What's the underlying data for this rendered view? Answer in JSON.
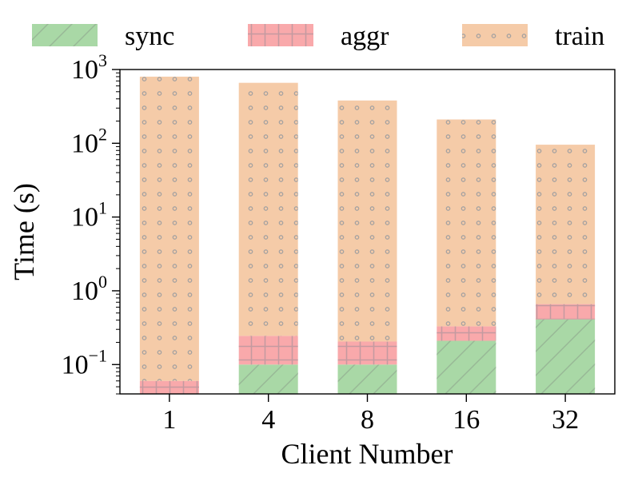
{
  "chart_data": {
    "type": "bar",
    "stacked": true,
    "title": "",
    "xlabel": "Client Number",
    "ylabel": "Time (s)",
    "yscale": "log",
    "ylim": [
      0.04,
      1000
    ],
    "y_ticks": [
      {
        "base": "10",
        "exp": "−1",
        "value": 0.1
      },
      {
        "base": "10",
        "exp": "0",
        "value": 1
      },
      {
        "base": "10",
        "exp": "1",
        "value": 10
      },
      {
        "base": "10",
        "exp": "2",
        "value": 100
      },
      {
        "base": "10",
        "exp": "3",
        "value": 1000
      }
    ],
    "categories": [
      "1",
      "4",
      "8",
      "16",
      "32"
    ],
    "series": [
      {
        "name": "sync",
        "color": "#a9d8a6",
        "hatch": "diagonal",
        "values": [
          0.0,
          0.1,
          0.1,
          0.21,
          0.41
        ]
      },
      {
        "name": "aggr",
        "color": "#f9a9ab",
        "hatch": "grid",
        "values": [
          0.06,
          0.145,
          0.105,
          0.12,
          0.25
        ]
      },
      {
        "name": "train",
        "color": "#f5cba8",
        "hatch": "dots",
        "values": [
          800,
          660,
          380,
          210,
          95
        ]
      }
    ],
    "legend": "top",
    "grid": false
  }
}
